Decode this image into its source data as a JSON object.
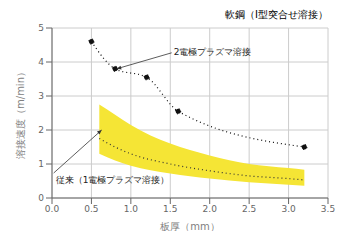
{
  "chart_data": {
    "type": "line",
    "title": "軟鋼（I型突合せ溶接）",
    "x_label": "板厚（mm）",
    "y_label": "溶接速度（m/min）",
    "xlim": [
      0,
      3.5
    ],
    "ylim": [
      0,
      5
    ],
    "xticks": [
      {
        "value": 0,
        "label": "0.0"
      },
      0.5,
      {
        "value": 1,
        "label": "1.0"
      },
      1.5,
      {
        "value": 2,
        "label": "2.0"
      },
      2.5,
      {
        "value": 3,
        "label": "3.0"
      },
      3.5
    ],
    "yticks": [
      0,
      1,
      2,
      3,
      4,
      5
    ],
    "grid": true,
    "series": [
      {
        "type": "band",
        "x": [
          0.6,
          0.8,
          1.0,
          1.5,
          2.0,
          2.5,
          3.0,
          3.2
        ],
        "upper": [
          2.75,
          2.45,
          2.15,
          1.6,
          1.25,
          1.0,
          0.88,
          0.83
        ],
        "lower": [
          1.3,
          1.1,
          0.95,
          0.72,
          0.57,
          0.46,
          0.39,
          0.36
        ],
        "color": "#f5e535"
      },
      {
        "type": "line",
        "x": [
          0.6,
          0.8,
          1.0,
          1.5,
          2.0,
          2.5,
          3.0,
          3.2
        ],
        "values": [
          1.75,
          1.5,
          1.3,
          1.0,
          0.8,
          0.65,
          0.57,
          0.53
        ],
        "color": "#333333",
        "line_style": "dotted"
      },
      {
        "type": "line",
        "x": [
          0.5,
          0.8,
          1.2,
          1.6,
          3.2
        ],
        "values": [
          4.6,
          3.8,
          3.55,
          2.55,
          1.5
        ],
        "color": "#111111",
        "line_style": "dotted",
        "marker": "circle"
      }
    ],
    "annotations": [
      {
        "text": "2電極プラズマ溶接",
        "x": 0.82,
        "y": 3.8
      },
      {
        "text": "従来（1電極プラズマ溶接）",
        "x": 0.63,
        "y": 2.0
      }
    ]
  }
}
